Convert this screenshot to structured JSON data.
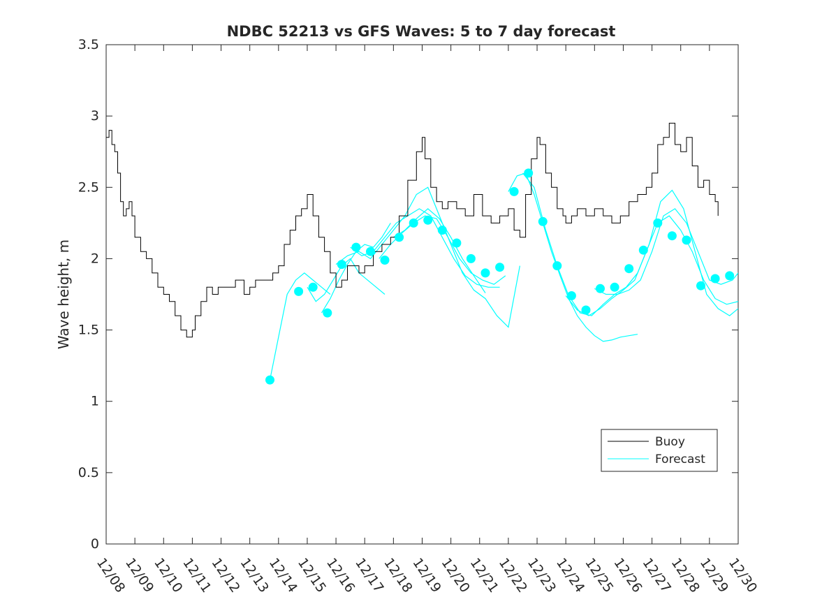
{
  "chart_data": {
    "type": "line",
    "title": "NDBC 52213 vs GFS Waves: 5 to 7 day forecast",
    "ylabel": "Wave height, m",
    "xlabel": "",
    "xlim": [
      0,
      22
    ],
    "ylim": [
      0,
      3.5
    ],
    "x_unit": "days since 12/08",
    "xtick_labels": [
      "12/08",
      "12/09",
      "12/10",
      "12/11",
      "12/12",
      "12/13",
      "12/14",
      "12/15",
      "12/16",
      "12/17",
      "12/18",
      "12/19",
      "12/20",
      "12/21",
      "12/22",
      "12/23",
      "12/24",
      "12/25",
      "12/26",
      "12/27",
      "12/28",
      "12/29",
      "12/30"
    ],
    "ytick_labels": [
      "0",
      "0.5",
      "1",
      "1.5",
      "2",
      "2.5",
      "3",
      "3.5"
    ],
    "yticks": [
      0,
      0.5,
      1,
      1.5,
      2,
      2.5,
      3,
      3.5
    ],
    "legend": {
      "position": "bottom-right",
      "entries": [
        "Buoy",
        "Forecast"
      ]
    },
    "colors": {
      "buoy": "#000000",
      "forecast": "#00ffff",
      "axis": "#262626"
    },
    "buoy": {
      "name": "Buoy",
      "x": [
        0,
        0.1,
        0.2,
        0.3,
        0.4,
        0.5,
        0.6,
        0.7,
        0.8,
        0.9,
        1.0,
        1.2,
        1.4,
        1.6,
        1.8,
        2.0,
        2.2,
        2.4,
        2.6,
        2.8,
        2.9,
        3.0,
        3.1,
        3.3,
        3.5,
        3.7,
        3.9,
        4.2,
        4.5,
        4.8,
        5.0,
        5.2,
        5.5,
        5.8,
        6.0,
        6.2,
        6.4,
        6.6,
        6.8,
        7.0,
        7.2,
        7.4,
        7.6,
        7.8,
        8.0,
        8.2,
        8.4,
        8.6,
        8.8,
        9.0,
        9.3,
        9.6,
        9.9,
        10.2,
        10.5,
        10.8,
        11.0,
        11.1,
        11.3,
        11.5,
        11.7,
        11.9,
        12.2,
        12.5,
        12.8,
        13.1,
        13.4,
        13.7,
        14.0,
        14.2,
        14.4,
        14.6,
        14.8,
        15.0,
        15.1,
        15.3,
        15.5,
        15.7,
        15.9,
        16.0,
        16.2,
        16.4,
        16.7,
        17.0,
        17.3,
        17.6,
        17.9,
        18.2,
        18.5,
        18.8,
        19.0,
        19.2,
        19.4,
        19.6,
        19.8,
        20.0,
        20.2,
        20.4,
        20.6,
        20.8,
        21.0,
        21.2,
        21.3
      ],
      "values": [
        2.85,
        2.9,
        2.8,
        2.75,
        2.6,
        2.4,
        2.3,
        2.35,
        2.4,
        2.3,
        2.15,
        2.05,
        2.0,
        1.9,
        1.8,
        1.75,
        1.7,
        1.6,
        1.5,
        1.45,
        1.45,
        1.5,
        1.6,
        1.7,
        1.8,
        1.75,
        1.8,
        1.8,
        1.85,
        1.75,
        1.8,
        1.85,
        1.85,
        1.9,
        1.95,
        2.1,
        2.2,
        2.3,
        2.35,
        2.45,
        2.3,
        2.15,
        2.05,
        1.9,
        1.8,
        1.85,
        1.95,
        1.95,
        1.9,
        1.95,
        2.05,
        2.1,
        2.15,
        2.3,
        2.55,
        2.75,
        2.85,
        2.7,
        2.5,
        2.4,
        2.35,
        2.4,
        2.35,
        2.3,
        2.45,
        2.3,
        2.25,
        2.3,
        2.35,
        2.2,
        2.15,
        2.45,
        2.7,
        2.85,
        2.8,
        2.6,
        2.5,
        2.35,
        2.3,
        2.25,
        2.3,
        2.35,
        2.3,
        2.35,
        2.3,
        2.25,
        2.3,
        2.4,
        2.45,
        2.5,
        2.6,
        2.8,
        2.85,
        2.95,
        2.8,
        2.75,
        2.85,
        2.65,
        2.5,
        2.55,
        2.45,
        2.4,
        2.3
      ]
    },
    "forecast_lines": [
      {
        "x": [
          5.7,
          6.0,
          6.3,
          6.6,
          6.9,
          7.2,
          7.5,
          7.8
        ],
        "values": [
          1.15,
          1.45,
          1.75,
          1.85,
          1.9,
          1.85,
          1.8,
          1.75
        ]
      },
      {
        "x": [
          7.0,
          7.3,
          7.6,
          7.9,
          8.2,
          8.5,
          8.8,
          9.1,
          9.4,
          9.7
        ],
        "values": [
          1.8,
          1.7,
          1.75,
          1.85,
          1.95,
          2.0,
          1.9,
          1.85,
          1.8,
          1.75
        ]
      },
      {
        "x": [
          7.5,
          7.8,
          8.1,
          8.4,
          8.7,
          9.0,
          9.3,
          9.6,
          9.9
        ],
        "values": [
          1.62,
          1.72,
          1.85,
          1.96,
          2.05,
          2.1,
          2.08,
          2.15,
          2.25
        ]
      },
      {
        "x": [
          8.0,
          8.4,
          8.8,
          9.2,
          9.6,
          10.0,
          10.4,
          10.8,
          11.2,
          11.6,
          12.0,
          12.4,
          12.8,
          13.2,
          13.6,
          14.0,
          14.4
        ],
        "values": [
          1.96,
          2.02,
          2.05,
          2.0,
          2.1,
          2.2,
          2.3,
          2.45,
          2.5,
          2.3,
          2.1,
          1.9,
          1.78,
          1.72,
          1.6,
          1.52,
          1.95
        ]
      },
      {
        "x": [
          8.5,
          8.9,
          9.3,
          9.7,
          10.1,
          10.5,
          10.9,
          11.3,
          11.7,
          12.1,
          12.5,
          12.9,
          13.3,
          13.7
        ],
        "values": [
          2.08,
          2.02,
          2.05,
          2.15,
          2.25,
          2.3,
          2.35,
          2.3,
          2.15,
          2.0,
          1.88,
          1.82,
          1.8,
          1.8
        ]
      },
      {
        "x": [
          9.5,
          9.9,
          10.3,
          10.7,
          11.1,
          11.5,
          11.9,
          12.3,
          12.7,
          13.1,
          13.5,
          13.9
        ],
        "values": [
          2.0,
          2.1,
          2.18,
          2.25,
          2.3,
          2.28,
          2.15,
          2.0,
          1.9,
          1.85,
          1.82,
          1.88
        ]
      },
      {
        "x": [
          10.0,
          10.4,
          10.8,
          11.2,
          11.6,
          12.0,
          12.4,
          12.8,
          13.2
        ],
        "values": [
          2.15,
          2.2,
          2.28,
          2.35,
          2.28,
          2.15,
          2.0,
          1.88,
          1.76
        ]
      },
      {
        "x": [
          14.0,
          14.3,
          14.6,
          14.9,
          15.2,
          15.5,
          15.8,
          16.1,
          16.4,
          16.7,
          17.0,
          17.3,
          17.6,
          17.9,
          18.2,
          18.5
        ],
        "values": [
          2.47,
          2.58,
          2.6,
          2.45,
          2.25,
          2.05,
          1.88,
          1.72,
          1.6,
          1.52,
          1.46,
          1.42,
          1.43,
          1.45,
          1.46,
          1.47
        ]
      },
      {
        "x": [
          14.5,
          14.9,
          15.3,
          15.7,
          16.1,
          16.5,
          16.9,
          17.3,
          17.7,
          18.1,
          18.5,
          18.9,
          19.3,
          19.7,
          20.1,
          20.5,
          20.9,
          21.3,
          21.7,
          22.0
        ],
        "values": [
          2.6,
          2.5,
          2.2,
          1.95,
          1.74,
          1.62,
          1.6,
          1.68,
          1.75,
          1.8,
          1.9,
          2.1,
          2.4,
          2.48,
          2.35,
          2.05,
          1.75,
          1.65,
          1.6,
          1.65
        ]
      },
      {
        "x": [
          16.0,
          16.4,
          16.8,
          17.2,
          17.6,
          18.0,
          18.4,
          18.8,
          19.2,
          19.6,
          20.0,
          20.4,
          20.8,
          21.2,
          21.6,
          22.0
        ],
        "values": [
          1.74,
          1.64,
          1.6,
          1.65,
          1.72,
          1.78,
          1.85,
          2.05,
          2.25,
          2.3,
          2.2,
          2.05,
          1.85,
          1.72,
          1.68,
          1.7
        ]
      },
      {
        "x": [
          17.0,
          17.4,
          17.8,
          18.2,
          18.6,
          19.0,
          19.4,
          19.8,
          20.2,
          20.6,
          21.0,
          21.4,
          21.8,
          22.0
        ],
        "values": [
          1.79,
          1.75,
          1.75,
          1.78,
          1.85,
          2.05,
          2.3,
          2.35,
          2.25,
          2.05,
          1.85,
          1.82,
          1.85,
          1.9
        ]
      }
    ],
    "forecast_points": {
      "name": "Forecast",
      "x": [
        5.7,
        6.7,
        7.2,
        7.7,
        8.2,
        8.7,
        9.2,
        9.7,
        10.2,
        10.7,
        11.2,
        11.7,
        12.2,
        12.7,
        13.2,
        13.7,
        14.2,
        14.7,
        15.2,
        15.7,
        16.2,
        16.7,
        17.2,
        17.7,
        18.2,
        18.7,
        19.2,
        19.7,
        20.2,
        20.7,
        21.2,
        21.7
      ],
      "values": [
        1.15,
        1.77,
        1.8,
        1.62,
        1.96,
        2.08,
        2.05,
        1.99,
        2.15,
        2.25,
        2.27,
        2.2,
        2.11,
        2.0,
        1.9,
        1.94,
        2.47,
        2.6,
        2.26,
        1.95,
        1.74,
        1.64,
        1.79,
        1.8,
        1.93,
        2.06,
        2.25,
        2.16,
        2.13,
        1.81,
        1.86,
        1.88
      ]
    }
  }
}
